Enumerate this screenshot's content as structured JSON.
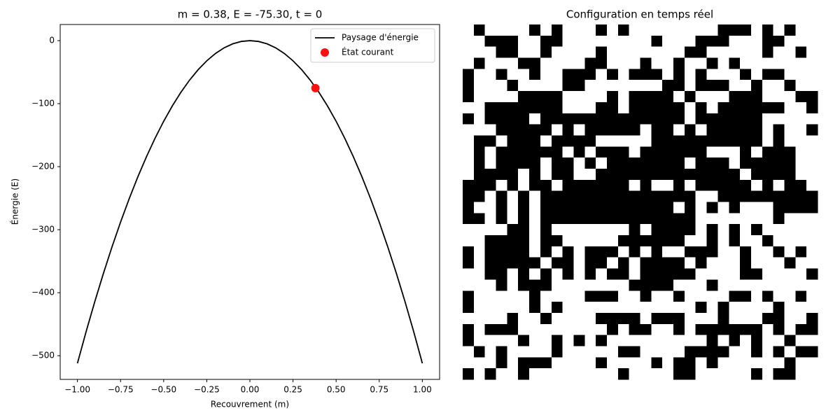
{
  "chart_data": [
    {
      "type": "line",
      "title": "m = 0.38, E = -75.30, t = 0",
      "xlabel": "Recouvrement (m)",
      "ylabel": "Énergie (E)",
      "xlim": [
        -1.1,
        1.1
      ],
      "ylim": [
        -537.6,
        25.6
      ],
      "xticks": [
        {
          "value": -1,
          "label": "−1.00"
        },
        {
          "value": -0.75,
          "label": "−0.75"
        },
        {
          "value": -0.5,
          "label": "−0.50"
        },
        {
          "value": -0.25,
          "label": "−0.25"
        },
        {
          "value": 0,
          "label": "0.00"
        },
        {
          "value": 0.25,
          "label": "0.25"
        },
        {
          "value": 0.5,
          "label": "0.50"
        },
        {
          "value": 0.75,
          "label": "0.75"
        },
        {
          "value": 1,
          "label": "1.00"
        }
      ],
      "yticks": [
        {
          "value": -500,
          "label": "−500"
        },
        {
          "value": -400,
          "label": "−400"
        },
        {
          "value": -300,
          "label": "−300"
        },
        {
          "value": -200,
          "label": "−200"
        },
        {
          "value": -100,
          "label": "−100"
        },
        0
      ],
      "legend": "upper right",
      "series": [
        {
          "name": "Paysage d'énergie",
          "color": "#000000",
          "style": "line",
          "x": [
            -1,
            -0.95,
            -0.9,
            -0.85,
            -0.8,
            -0.75,
            -0.7,
            -0.65,
            -0.6,
            -0.55,
            -0.5,
            -0.45,
            -0.4,
            -0.35,
            -0.3,
            -0.25,
            -0.2,
            -0.15,
            -0.1,
            -0.05,
            0,
            0.05,
            0.1,
            0.15,
            0.2,
            0.25,
            0.3,
            0.35,
            0.4,
            0.45,
            0.5,
            0.55,
            0.6,
            0.65,
            0.7,
            0.75,
            0.8,
            0.85,
            0.9,
            0.95,
            1
          ],
          "values": [
            -512,
            -462.08,
            -414.72,
            -369.92,
            -327.68,
            -288,
            -250.88,
            -216.32,
            -184.32,
            -154.88,
            -128,
            -103.68,
            -81.92,
            -62.72,
            -46.08,
            -32,
            -20.48,
            -11.52,
            -5.12,
            -1.28,
            0,
            -1.28,
            -5.12,
            -11.52,
            -20.48,
            -32,
            -46.08,
            -62.72,
            -81.92,
            -103.68,
            -128,
            -154.88,
            -184.32,
            -216.32,
            -250.88,
            -288,
            -327.68,
            -369.92,
            -414.72,
            -462.08,
            -512
          ]
        },
        {
          "name": "État courant",
          "color": "#ff1010",
          "style": "marker",
          "x": [
            0.38
          ],
          "values": [
            -75.3
          ]
        }
      ]
    },
    {
      "type": "heatmap",
      "title": "Configuration en temps réel",
      "colors": [
        "#000000",
        "#ffffff"
      ],
      "values": [
        [
          1,
          0,
          1,
          1,
          1,
          1,
          0,
          1,
          0,
          1,
          1,
          1,
          0,
          1,
          0,
          1,
          1,
          1,
          1,
          1,
          1,
          1,
          1,
          0,
          0,
          0,
          1,
          0,
          1,
          0,
          1,
          1
        ],
        [
          1,
          1,
          0,
          0,
          0,
          1,
          1,
          0,
          0,
          1,
          1,
          1,
          1,
          1,
          1,
          1,
          1,
          0,
          1,
          1,
          1,
          0,
          0,
          0,
          1,
          1,
          1,
          0,
          0,
          1,
          1,
          1
        ],
        [
          1,
          1,
          1,
          0,
          0,
          1,
          1,
          0,
          1,
          1,
          1,
          1,
          0,
          1,
          1,
          1,
          1,
          1,
          1,
          1,
          0,
          0,
          1,
          1,
          1,
          1,
          1,
          0,
          1,
          1,
          0,
          1
        ],
        [
          1,
          0,
          1,
          1,
          1,
          0,
          0,
          1,
          1,
          1,
          1,
          0,
          0,
          1,
          1,
          1,
          0,
          1,
          1,
          0,
          1,
          1,
          0,
          1,
          0,
          1,
          1,
          1,
          1,
          1,
          1,
          1
        ],
        [
          0,
          1,
          1,
          0,
          1,
          1,
          0,
          1,
          1,
          0,
          0,
          0,
          1,
          0,
          1,
          0,
          0,
          0,
          1,
          0,
          1,
          0,
          1,
          1,
          1,
          0,
          1,
          0,
          0,
          1,
          1,
          1
        ],
        [
          0,
          1,
          1,
          1,
          0,
          1,
          1,
          1,
          1,
          0,
          0,
          1,
          1,
          1,
          1,
          1,
          1,
          1,
          0,
          0,
          1,
          0,
          0,
          0,
          1,
          1,
          0,
          1,
          1,
          0,
          1,
          1
        ],
        [
          0,
          1,
          1,
          1,
          1,
          0,
          0,
          0,
          0,
          1,
          1,
          1,
          1,
          0,
          1,
          0,
          0,
          0,
          0,
          1,
          0,
          1,
          1,
          1,
          0,
          0,
          0,
          1,
          1,
          1,
          0,
          0
        ],
        [
          1,
          1,
          0,
          0,
          0,
          0,
          0,
          0,
          0,
          1,
          1,
          1,
          0,
          0,
          1,
          0,
          0,
          0,
          0,
          0,
          1,
          0,
          1,
          0,
          0,
          0,
          0,
          0,
          0,
          1,
          1,
          0
        ],
        [
          0,
          1,
          0,
          0,
          0,
          0,
          1,
          0,
          0,
          0,
          0,
          0,
          0,
          0,
          0,
          0,
          0,
          0,
          0,
          0,
          1,
          0,
          0,
          0,
          0,
          0,
          0,
          1,
          1,
          1,
          1,
          1
        ],
        [
          1,
          1,
          1,
          0,
          0,
          0,
          0,
          0,
          1,
          0,
          1,
          0,
          0,
          0,
          0,
          0,
          1,
          0,
          0,
          1,
          0,
          1,
          0,
          0,
          0,
          0,
          0,
          1,
          0,
          1,
          1,
          0
        ],
        [
          1,
          0,
          0,
          1,
          0,
          0,
          0,
          1,
          0,
          0,
          0,
          0,
          1,
          1,
          1,
          1,
          1,
          0,
          0,
          0,
          0,
          0,
          0,
          0,
          0,
          0,
          0,
          1,
          0,
          1,
          1,
          1
        ],
        [
          1,
          0,
          1,
          0,
          0,
          0,
          0,
          0,
          0,
          1,
          0,
          1,
          0,
          0,
          0,
          1,
          0,
          0,
          0,
          0,
          0,
          0,
          1,
          1,
          1,
          0,
          1,
          0,
          0,
          0,
          1,
          1
        ],
        [
          1,
          0,
          1,
          0,
          0,
          0,
          0,
          1,
          0,
          0,
          1,
          0,
          1,
          0,
          0,
          0,
          0,
          0,
          0,
          0,
          1,
          0,
          0,
          0,
          1,
          0,
          0,
          0,
          0,
          0,
          1,
          1
        ],
        [
          1,
          0,
          0,
          0,
          0,
          1,
          0,
          1,
          0,
          0,
          1,
          1,
          0,
          0,
          0,
          0,
          0,
          0,
          0,
          0,
          0,
          0,
          0,
          0,
          0,
          1,
          0,
          0,
          0,
          0,
          1,
          1
        ],
        [
          0,
          0,
          0,
          1,
          0,
          1,
          0,
          0,
          1,
          0,
          0,
          0,
          0,
          0,
          0,
          1,
          0,
          1,
          1,
          0,
          1,
          0,
          0,
          0,
          0,
          0,
          1,
          0,
          1,
          0,
          0,
          1
        ],
        [
          0,
          0,
          1,
          0,
          1,
          0,
          1,
          0,
          0,
          0,
          0,
          0,
          0,
          0,
          0,
          0,
          0,
          0,
          0,
          0,
          0,
          1,
          1,
          0,
          0,
          0,
          0,
          0,
          0,
          0,
          0,
          0
        ],
        [
          0,
          1,
          1,
          0,
          1,
          0,
          1,
          0,
          0,
          0,
          0,
          0,
          0,
          0,
          0,
          0,
          0,
          0,
          0,
          1,
          0,
          1,
          0,
          1,
          0,
          1,
          1,
          1,
          0,
          0,
          0,
          0
        ],
        [
          0,
          0,
          1,
          0,
          1,
          0,
          1,
          0,
          0,
          0,
          0,
          0,
          0,
          0,
          0,
          0,
          0,
          0,
          0,
          0,
          0,
          1,
          1,
          1,
          1,
          1,
          1,
          1,
          0,
          1,
          1,
          1
        ],
        [
          1,
          1,
          1,
          1,
          0,
          0,
          1,
          0,
          1,
          1,
          1,
          1,
          1,
          1,
          1,
          0,
          1,
          0,
          0,
          0,
          0,
          1,
          0,
          1,
          0,
          1,
          0,
          1,
          1,
          1,
          1,
          1
        ],
        [
          1,
          1,
          0,
          0,
          0,
          0,
          1,
          0,
          0,
          1,
          1,
          1,
          1,
          1,
          0,
          0,
          0,
          0,
          0,
          0,
          1,
          1,
          0,
          1,
          0,
          1,
          1,
          0,
          1,
          1,
          1,
          1
        ],
        [
          0,
          1,
          0,
          0,
          0,
          0,
          1,
          0,
          1,
          0,
          1,
          0,
          0,
          0,
          1,
          0,
          1,
          0,
          1,
          1,
          0,
          0,
          0,
          1,
          1,
          0,
          1,
          1,
          0,
          1,
          0,
          1
        ],
        [
          0,
          1,
          0,
          0,
          0,
          0,
          0,
          1,
          0,
          0,
          1,
          0,
          0,
          1,
          0,
          1,
          0,
          0,
          0,
          0,
          1,
          0,
          1,
          1,
          1,
          0,
          1,
          1,
          1,
          0,
          1,
          1
        ],
        [
          1,
          1,
          0,
          0,
          1,
          0,
          1,
          0,
          1,
          0,
          1,
          0,
          1,
          0,
          0,
          1,
          0,
          0,
          0,
          0,
          0,
          1,
          1,
          1,
          1,
          0,
          0,
          1,
          1,
          1,
          1,
          0
        ],
        [
          1,
          1,
          1,
          0,
          1,
          0,
          0,
          0,
          1,
          1,
          1,
          1,
          1,
          1,
          1,
          0,
          0,
          0,
          0,
          1,
          1,
          1,
          0,
          1,
          1,
          1,
          1,
          1,
          1,
          1,
          1,
          1
        ],
        [
          0,
          1,
          1,
          1,
          1,
          1,
          0,
          1,
          1,
          1,
          1,
          0,
          0,
          0,
          1,
          1,
          0,
          1,
          1,
          0,
          1,
          1,
          1,
          1,
          0,
          0,
          1,
          0,
          1,
          1,
          0,
          1
        ],
        [
          0,
          1,
          1,
          1,
          1,
          1,
          0,
          1,
          0,
          1,
          1,
          1,
          1,
          1,
          1,
          1,
          1,
          1,
          1,
          1,
          1,
          0,
          1,
          0,
          1,
          1,
          1,
          1,
          0,
          1,
          1,
          1
        ],
        [
          1,
          1,
          1,
          1,
          0,
          1,
          1,
          0,
          1,
          1,
          1,
          1,
          0,
          0,
          0,
          0,
          1,
          0,
          0,
          0,
          1,
          1,
          1,
          0,
          1,
          1,
          1,
          0,
          0,
          1,
          1,
          0
        ],
        [
          0,
          1,
          0,
          0,
          0,
          1,
          1,
          1,
          1,
          1,
          1,
          1,
          1,
          0,
          1,
          0,
          0,
          1,
          1,
          0,
          1,
          0,
          0,
          0,
          0,
          0,
          0,
          1,
          0,
          1,
          0,
          0
        ],
        [
          0,
          1,
          1,
          1,
          1,
          0,
          1,
          1,
          0,
          1,
          0,
          1,
          0,
          1,
          1,
          1,
          1,
          1,
          1,
          1,
          1,
          1,
          0,
          1,
          0,
          1,
          0,
          1,
          1,
          0,
          1,
          1
        ],
        [
          1,
          0,
          1,
          0,
          1,
          1,
          1,
          1,
          0,
          1,
          1,
          1,
          1,
          1,
          0,
          0,
          1,
          1,
          1,
          1,
          0,
          0,
          0,
          0,
          1,
          1,
          0,
          1,
          0,
          1,
          0,
          0
        ],
        [
          1,
          1,
          1,
          0,
          1,
          0,
          0,
          0,
          1,
          1,
          1,
          1,
          0,
          1,
          1,
          1,
          1,
          0,
          1,
          0,
          0,
          1,
          0,
          1,
          1,
          1,
          1,
          1,
          1,
          0,
          1,
          1
        ],
        [
          0,
          1,
          0,
          1,
          1,
          0,
          1,
          1,
          1,
          1,
          1,
          1,
          1,
          1,
          0,
          1,
          1,
          1,
          1,
          0,
          0,
          1,
          1,
          1,
          1,
          1,
          0,
          1,
          0,
          0,
          1,
          1
        ]
      ]
    }
  ]
}
